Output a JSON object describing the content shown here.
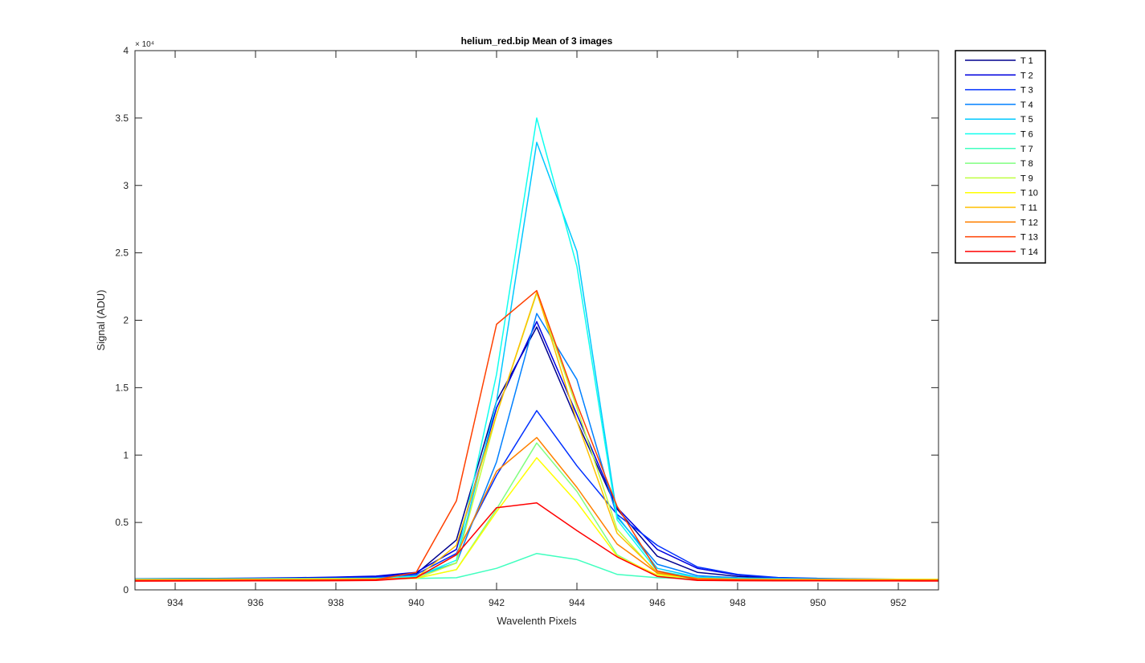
{
  "chart_data": {
    "type": "line",
    "title": "helium_red.bip  Mean of 3 images",
    "xlabel": "Wavelenth Pixels",
    "ylabel": "Signal (ADU)",
    "y_exponent_label": "× 10⁴",
    "xlim": [
      933,
      953
    ],
    "ylim": [
      0,
      40000
    ],
    "x_ticks": [
      934,
      936,
      938,
      940,
      942,
      944,
      946,
      948,
      950,
      952
    ],
    "x_tick_labels": [
      "934",
      "936",
      "938",
      "940",
      "942",
      "944",
      "946",
      "948",
      "950",
      "952"
    ],
    "y_ticks": [
      0,
      5000,
      10000,
      15000,
      20000,
      25000,
      30000,
      35000,
      40000
    ],
    "y_tick_labels": [
      "0",
      "0.5",
      "1",
      "1.5",
      "2",
      "2.5",
      "3",
      "3.5",
      "4"
    ],
    "grid": false,
    "legend_position": "outside-right-top",
    "x": [
      933,
      934,
      935,
      936,
      937,
      938,
      939,
      940,
      941,
      942,
      943,
      944,
      945,
      946,
      947,
      948,
      949,
      950,
      951,
      952,
      953
    ],
    "series": [
      {
        "name": "T 1",
        "color": "#00008F",
        "values": [
          800,
          820,
          830,
          850,
          880,
          920,
          980,
          1200,
          3700,
          14000,
          19500,
          12500,
          6000,
          2500,
          1300,
          1000,
          880,
          820,
          790,
          770,
          760
        ]
      },
      {
        "name": "T 2",
        "color": "#0000DF",
        "values": [
          820,
          840,
          850,
          870,
          900,
          950,
          1020,
          1300,
          3000,
          13500,
          19900,
          13000,
          6100,
          3000,
          1600,
          1100,
          900,
          830,
          800,
          780,
          770
        ]
      },
      {
        "name": "T 3",
        "color": "#0030FF",
        "values": [
          800,
          810,
          820,
          830,
          850,
          880,
          940,
          1150,
          2700,
          8500,
          13300,
          9200,
          5600,
          3300,
          1700,
          1150,
          920,
          850,
          810,
          790,
          780
        ]
      },
      {
        "name": "T 4",
        "color": "#0080FF",
        "values": [
          760,
          770,
          780,
          790,
          800,
          820,
          860,
          1050,
          2000,
          9500,
          20500,
          15600,
          5400,
          1900,
          1050,
          900,
          850,
          820,
          800,
          790,
          780
        ]
      },
      {
        "name": "T 5",
        "color": "#00C8FF",
        "values": [
          760,
          770,
          780,
          790,
          800,
          820,
          850,
          1000,
          2000,
          14000,
          33200,
          25100,
          5500,
          1600,
          950,
          850,
          820,
          800,
          790,
          780,
          770
        ]
      },
      {
        "name": "T 6",
        "color": "#10FFEF",
        "values": [
          760,
          770,
          780,
          790,
          800,
          820,
          850,
          1000,
          2200,
          16000,
          35000,
          24000,
          5200,
          1400,
          900,
          830,
          810,
          800,
          790,
          780,
          770
        ]
      },
      {
        "name": "T 7",
        "color": "#40FFBF",
        "values": [
          800,
          810,
          820,
          830,
          840,
          850,
          860,
          850,
          900,
          1600,
          2700,
          2250,
          1150,
          900,
          820,
          800,
          790,
          780,
          780,
          780,
          780
        ]
      },
      {
        "name": "T 8",
        "color": "#80FF80",
        "values": [
          760,
          770,
          780,
          790,
          800,
          810,
          820,
          850,
          1500,
          6000,
          10900,
          7300,
          2600,
          1000,
          800,
          780,
          770,
          760,
          760,
          760,
          760
        ]
      },
      {
        "name": "T 9",
        "color": "#BFFF40",
        "values": [
          740,
          750,
          760,
          770,
          780,
          790,
          800,
          850,
          2000,
          13000,
          22000,
          13500,
          4500,
          1200,
          800,
          770,
          760,
          750,
          750,
          750,
          740
        ]
      },
      {
        "name": "T 10",
        "color": "#FFFF00",
        "values": [
          760,
          770,
          780,
          790,
          800,
          810,
          820,
          850,
          1500,
          5800,
          9800,
          6500,
          2500,
          1100,
          850,
          800,
          790,
          780,
          780,
          780,
          780
        ]
      },
      {
        "name": "T 11",
        "color": "#FFBF00",
        "values": [
          720,
          730,
          740,
          750,
          760,
          770,
          790,
          900,
          3300,
          13000,
          22100,
          12500,
          4200,
          1300,
          850,
          780,
          760,
          750,
          740,
          740,
          730
        ]
      },
      {
        "name": "T 12",
        "color": "#FF8000",
        "values": [
          720,
          730,
          740,
          750,
          760,
          770,
          790,
          900,
          2600,
          8800,
          11300,
          7600,
          3400,
          1250,
          850,
          780,
          760,
          750,
          740,
          740,
          730
        ]
      },
      {
        "name": "T 13",
        "color": "#FF4000",
        "values": [
          700,
          705,
          710,
          715,
          720,
          730,
          760,
          1300,
          6600,
          19700,
          22200,
          13800,
          6200,
          1400,
          750,
          720,
          710,
          705,
          700,
          700,
          700
        ]
      },
      {
        "name": "T 14",
        "color": "#FF0000",
        "values": [
          650,
          655,
          660,
          665,
          670,
          680,
          700,
          900,
          2600,
          6100,
          6450,
          4400,
          2450,
          1000,
          700,
          680,
          670,
          665,
          660,
          660,
          655
        ]
      }
    ]
  }
}
